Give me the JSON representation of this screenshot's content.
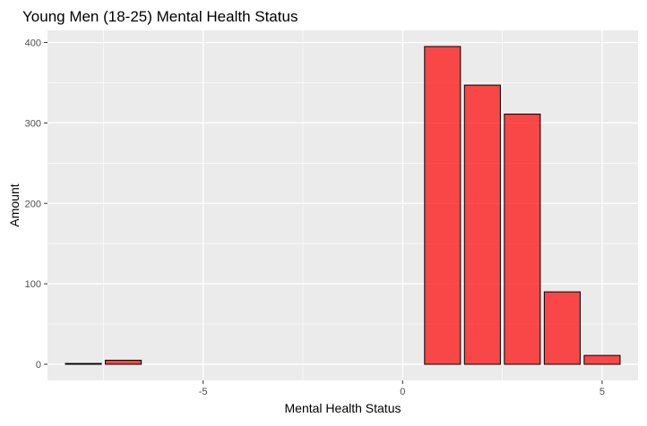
{
  "chart_data": {
    "type": "bar",
    "title": "Young Men (18-25) Mental Health Status",
    "xlabel": "Mental Health Status",
    "ylabel": "Amount",
    "x": [
      -8,
      -7,
      1,
      2,
      3,
      4,
      5
    ],
    "values": [
      1,
      5,
      395,
      347,
      311,
      90,
      11
    ],
    "xlim": [
      -8.9,
      5.9
    ],
    "ylim": [
      -20,
      415
    ],
    "xticks": [
      -5,
      0,
      5
    ],
    "yticks": [
      0,
      100,
      200,
      300,
      400
    ],
    "xtick_labels": [
      "-5",
      "0",
      "5"
    ],
    "ytick_labels": [
      "0",
      "100",
      "200",
      "300",
      "400"
    ],
    "grid": true,
    "legend": "none",
    "colors": {
      "bar_fill": "#ff0000",
      "bar_fill_opacity": 0.7,
      "bar_stroke": "#000000",
      "panel_bg": "#ebebeb",
      "grid": "#ffffff"
    }
  }
}
